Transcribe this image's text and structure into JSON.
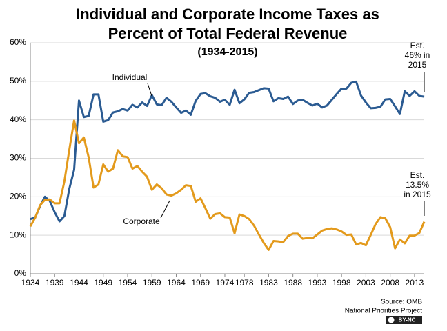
{
  "chart_data": {
    "type": "line",
    "title": [
      "Individual and Corporate Income Taxes as",
      "Percent of Total Federal Revenue"
    ],
    "subtitle": "(1934-2015)",
    "x": [
      1934,
      1935,
      1936,
      1937,
      1938,
      1939,
      1940,
      1941,
      1942,
      1943,
      1944,
      1945,
      1946,
      1947,
      1948,
      1949,
      1950,
      1951,
      1952,
      1953,
      1954,
      1955,
      1956,
      1957,
      1958,
      1959,
      1960,
      1961,
      1962,
      1963,
      1964,
      1965,
      1966,
      1967,
      1968,
      1969,
      1970,
      1971,
      1972,
      1973,
      1974,
      1975,
      1976,
      1977,
      1978,
      1979,
      1980,
      1981,
      1982,
      1983,
      1984,
      1985,
      1986,
      1987,
      1988,
      1989,
      1990,
      1991,
      1992,
      1993,
      1994,
      1995,
      1996,
      1997,
      1998,
      1999,
      2000,
      2001,
      2002,
      2003,
      2004,
      2005,
      2006,
      2007,
      2008,
      2009,
      2010,
      2011,
      2012,
      2013,
      2014,
      2015
    ],
    "series": [
      {
        "name": "Individual",
        "color": "#2b5b92",
        "values": [
          14.2,
          14.6,
          17.6,
          20.0,
          18.9,
          16.0,
          13.6,
          15.0,
          22.0,
          27.0,
          45.0,
          40.7,
          41.0,
          46.6,
          46.6,
          39.5,
          39.9,
          41.9,
          42.2,
          42.8,
          42.4,
          43.9,
          43.2,
          44.5,
          43.6,
          46.4,
          44.0,
          43.8,
          45.7,
          44.7,
          43.2,
          41.8,
          42.4,
          41.3,
          44.9,
          46.7,
          46.9,
          46.1,
          45.7,
          44.7,
          45.2,
          43.9,
          47.8,
          44.3,
          45.3,
          47.0,
          47.2,
          47.7,
          48.2,
          48.1,
          44.8,
          45.6,
          45.4,
          46.0,
          44.1,
          45.0,
          45.2,
          44.4,
          43.7,
          44.2,
          43.2,
          43.7,
          45.2,
          46.7,
          48.1,
          48.1,
          49.6,
          49.9,
          46.3,
          44.5,
          43.0,
          43.1,
          43.4,
          45.3,
          45.4,
          43.5,
          41.5,
          47.4,
          46.2,
          47.4,
          46.2,
          46.0
        ]
      },
      {
        "name": "Corporate",
        "color": "#e39a1c",
        "values": [
          12.3,
          14.6,
          17.8,
          19.2,
          19.3,
          18.3,
          18.3,
          24.0,
          32.1,
          39.8,
          33.9,
          35.4,
          30.2,
          22.4,
          23.2,
          28.4,
          26.5,
          27.3,
          32.1,
          30.5,
          30.3,
          27.3,
          28.0,
          26.5,
          25.2,
          21.8,
          23.2,
          22.2,
          20.6,
          20.3,
          20.9,
          21.8,
          23.0,
          22.8,
          18.7,
          19.6,
          17.0,
          14.3,
          15.5,
          15.7,
          14.7,
          14.6,
          10.5,
          15.4,
          15.0,
          14.2,
          12.5,
          10.2,
          8.0,
          6.2,
          8.5,
          8.4,
          8.2,
          9.8,
          10.4,
          10.4,
          9.1,
          9.3,
          9.2,
          10.2,
          11.2,
          11.6,
          11.8,
          11.5,
          11.0,
          10.1,
          10.2,
          7.6,
          8.0,
          7.4,
          10.1,
          12.9,
          14.7,
          14.4,
          12.1,
          6.6,
          8.9,
          7.9,
          9.9,
          9.9,
          10.6,
          13.5
        ]
      }
    ],
    "xlim": [
      1934,
      2015
    ],
    "xticks": [
      1934,
      1939,
      1944,
      1949,
      1954,
      1959,
      1964,
      1969,
      1974,
      1978,
      1983,
      1988,
      1993,
      1998,
      2003,
      2008,
      2013
    ],
    "ylim": [
      0,
      60
    ],
    "yticks": [
      {
        "value": 0,
        "label": "0%"
      },
      {
        "value": 10,
        "label": "10%"
      },
      {
        "value": 20,
        "label": "20%"
      },
      {
        "value": 30,
        "label": "30%"
      },
      {
        "value": 40,
        "label": "40%"
      },
      {
        "value": 50,
        "label": "50%"
      },
      {
        "value": 60,
        "label": "60%"
      }
    ],
    "grid": true,
    "annotations": [
      {
        "lines": [
          "Est.",
          "46% in",
          "2015"
        ]
      },
      {
        "lines": [
          "Est.",
          "13.5%",
          "in 2015"
        ]
      }
    ],
    "source": [
      "Source: OMB",
      "National Priorities Project"
    ],
    "license": "BY-NC"
  }
}
